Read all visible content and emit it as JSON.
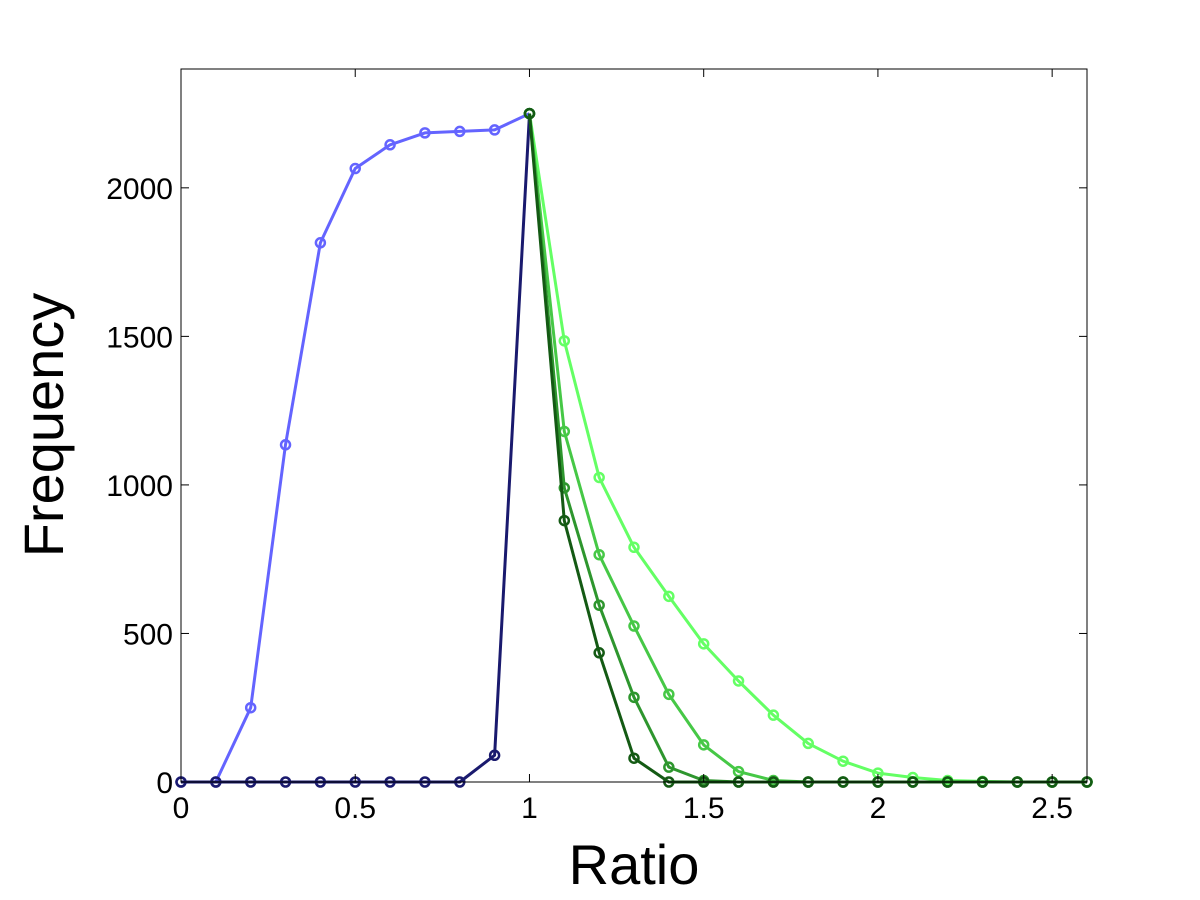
{
  "chart_data": {
    "type": "line",
    "title": "",
    "xlabel": "Ratio",
    "ylabel": "Frequency",
    "xlim": [
      0,
      2.6
    ],
    "ylim": [
      0,
      2400
    ],
    "grid": false,
    "legend": "none",
    "xticks": [
      0,
      0.5,
      1,
      1.5,
      2,
      2.5
    ],
    "xtick_labels": [
      "0",
      "0.5",
      "1",
      "1.5",
      "2",
      "2.5"
    ],
    "yticks": [
      0,
      500,
      1000,
      1500,
      2000
    ],
    "ytick_labels": [
      "0",
      "500",
      "1000",
      "1500",
      "2000"
    ],
    "series": [
      {
        "color": "#6464ff",
        "x": [
          0,
          0.1,
          0.2,
          0.3,
          0.4,
          0.5,
          0.6,
          0.7,
          0.8,
          0.9,
          1.0
        ],
        "y": [
          0,
          0,
          250,
          1135,
          1815,
          2065,
          2145,
          2185,
          2190,
          2195,
          2250
        ]
      },
      {
        "color": "#1a1a6e",
        "x": [
          0,
          0.1,
          0.2,
          0.3,
          0.4,
          0.5,
          0.6,
          0.7,
          0.8,
          0.9,
          1.0
        ],
        "y": [
          0,
          0,
          0,
          0,
          0,
          0,
          0,
          0,
          0,
          90,
          2250
        ]
      },
      {
        "color": "#64ff64",
        "x": [
          1.0,
          1.1,
          1.2,
          1.3,
          1.4,
          1.5,
          1.6,
          1.7,
          1.8,
          1.9,
          2.0,
          2.1,
          2.2,
          2.3,
          2.4,
          2.5,
          2.6
        ],
        "y": [
          2250,
          1485,
          1025,
          790,
          625,
          465,
          340,
          225,
          130,
          70,
          30,
          15,
          5,
          2,
          0,
          0,
          0
        ]
      },
      {
        "color": "#46c846",
        "x": [
          1.0,
          1.1,
          1.2,
          1.3,
          1.4,
          1.5,
          1.6,
          1.7,
          1.8,
          1.9,
          2.0,
          2.1,
          2.2,
          2.3,
          2.4,
          2.5,
          2.6
        ],
        "y": [
          2250,
          1180,
          765,
          525,
          295,
          125,
          35,
          5,
          0,
          0,
          0,
          0,
          0,
          0,
          0,
          0,
          0
        ]
      },
      {
        "color": "#2e962e",
        "x": [
          1.0,
          1.1,
          1.2,
          1.3,
          1.4,
          1.5,
          1.6,
          1.7,
          1.8,
          1.9,
          2.0,
          2.1,
          2.2,
          2.3,
          2.4,
          2.5,
          2.6
        ],
        "y": [
          2250,
          990,
          595,
          285,
          50,
          5,
          0,
          0,
          0,
          0,
          0,
          0,
          0,
          0,
          0,
          0,
          0
        ]
      },
      {
        "color": "#145a14",
        "x": [
          1.0,
          1.1,
          1.2,
          1.3,
          1.4,
          1.5,
          1.6,
          1.7,
          1.8,
          1.9,
          2.0,
          2.1,
          2.2,
          2.3,
          2.4,
          2.5,
          2.6
        ],
        "y": [
          2250,
          880,
          435,
          80,
          0,
          0,
          0,
          0,
          0,
          0,
          0,
          0,
          0,
          0,
          0,
          0,
          0
        ]
      }
    ]
  }
}
